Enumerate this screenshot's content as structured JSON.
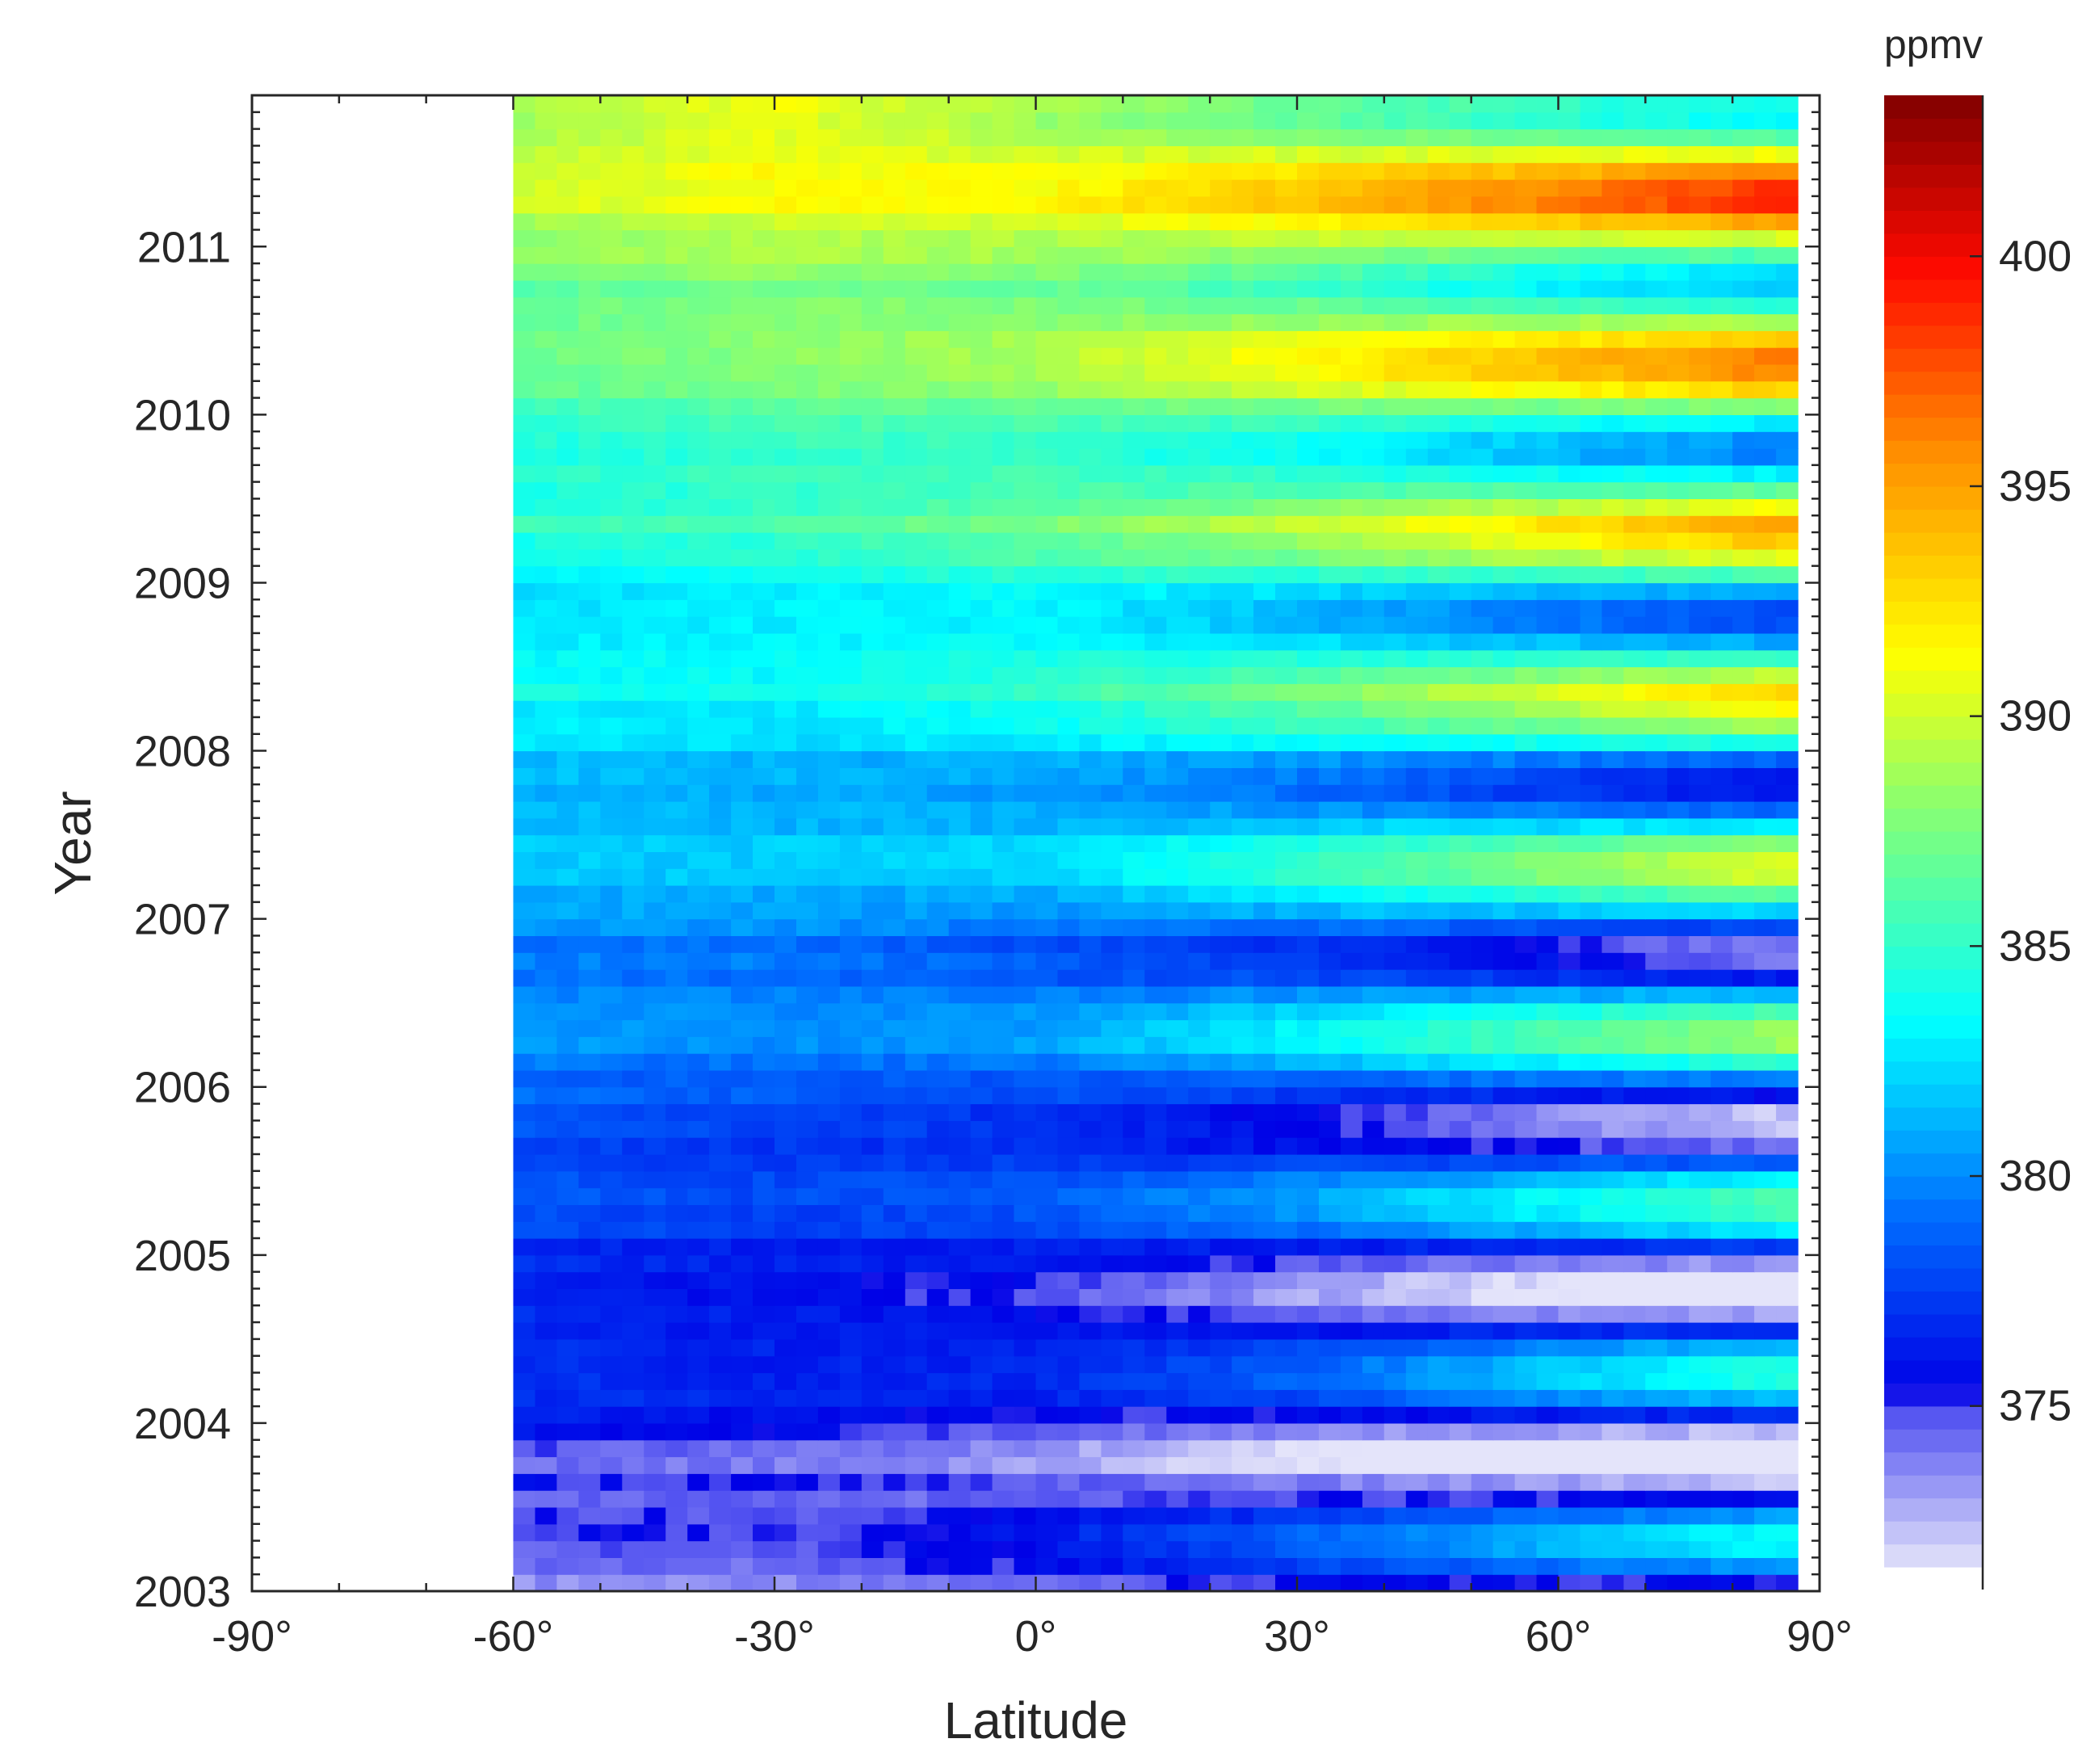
{
  "chart_data": {
    "type": "heatmap",
    "title": "",
    "xlabel": "Latitude",
    "ylabel": "Year",
    "colorbar_label": "ppmv",
    "colormap": "jet",
    "x_range": [
      -90,
      90
    ],
    "y_range": [
      2003,
      2011.9
    ],
    "x_ticks": [
      -90,
      -60,
      -30,
      0,
      30,
      60,
      90
    ],
    "x_tick_labels": [
      "-90°",
      "-60°",
      "-30°",
      "0°",
      "30°",
      "60°",
      "90°"
    ],
    "y_ticks": [
      2003,
      2004,
      2005,
      2006,
      2007,
      2008,
      2009,
      2010,
      2011
    ],
    "y_tick_labels": [
      "2003",
      "2004",
      "2005",
      "2006",
      "2007",
      "2008",
      "2009",
      "2010",
      "2011"
    ],
    "colorbar_range": [
      371.5,
      403.5
    ],
    "colorbar_ticks": [
      375,
      380,
      385,
      390,
      395,
      400
    ],
    "colorbar_tick_labels": [
      "375",
      "380",
      "385",
      "390",
      "395",
      "400"
    ],
    "data_extent": {
      "lat_min": -60,
      "lat_max": 87.5,
      "lat_step": 2.5,
      "year_min": 2003,
      "year_max": 2011.9,
      "time_step": 0.1
    },
    "grid": false,
    "annual_mean_ppmv_by_latitude": {
      "latitudes": [
        -60,
        -30,
        0,
        30,
        60,
        85
      ],
      "years": [
        2003,
        2004,
        2005,
        2006,
        2007,
        2008,
        2009,
        2010,
        2011,
        2011.8
      ],
      "values": [
        [
          374.0,
          374.0,
          375.0,
          376.0,
          376.0,
          376.0
        ],
        [
          376.0,
          375.5,
          375.0,
          375.0,
          376.0,
          376.5
        ],
        [
          377.0,
          376.5,
          376.5,
          376.5,
          377.0,
          377.5
        ],
        [
          379.0,
          378.5,
          378.5,
          379.0,
          379.5,
          380.0
        ],
        [
          380.5,
          380.5,
          380.0,
          381.0,
          381.5,
          382.0
        ],
        [
          382.5,
          382.0,
          382.5,
          383.0,
          383.5,
          384.0
        ],
        [
          383.5,
          384.0,
          385.0,
          385.0,
          385.5,
          386.0
        ],
        [
          385.5,
          386.5,
          387.0,
          387.5,
          387.5,
          388.0
        ],
        [
          388.5,
          389.5,
          389.5,
          390.0,
          390.0,
          390.5
        ],
        [
          390.0,
          392.0,
          390.5,
          390.5,
          391.0,
          391.5
        ]
      ]
    },
    "seasonal_amplitude_ppmv_by_latitude": {
      "latitudes": [
        -60,
        -30,
        0,
        30,
        60,
        85
      ],
      "values": [
        0.8,
        0.8,
        1.5,
        3.5,
        6.0,
        8.0
      ]
    }
  }
}
